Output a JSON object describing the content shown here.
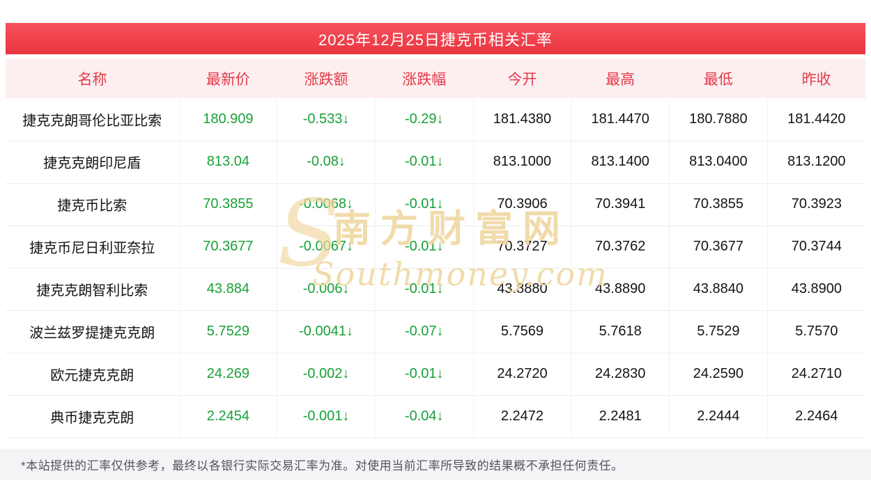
{
  "header": {
    "title": "2025年12月25日捷克币相关汇率"
  },
  "chart_data": {
    "type": "table",
    "title": "2025年12月25日捷克币相关汇率",
    "columns": [
      "名称",
      "最新价",
      "涨跌额",
      "涨跌幅",
      "今开",
      "最高",
      "最低",
      "昨收"
    ],
    "green_columns": [
      1,
      2,
      3
    ],
    "rows": [
      [
        "捷克克朗哥伦比亚比索",
        "180.909",
        "-0.533↓",
        "-0.29↓",
        "181.4380",
        "181.4470",
        "180.7880",
        "181.4420"
      ],
      [
        "捷克克朗印尼盾",
        "813.04",
        "-0.08↓",
        "-0.01↓",
        "813.1000",
        "813.1400",
        "813.0400",
        "813.1200"
      ],
      [
        "捷克币比索",
        "70.3855",
        "-0.0068↓",
        "-0.01↓",
        "70.3906",
        "70.3941",
        "70.3855",
        "70.3923"
      ],
      [
        "捷克币尼日利亚奈拉",
        "70.3677",
        "-0.0067↓",
        "-0.01↓",
        "70.3727",
        "70.3762",
        "70.3677",
        "70.3744"
      ],
      [
        "捷克克朗智利比索",
        "43.884",
        "-0.006↓",
        "-0.01↓",
        "43.8880",
        "43.8890",
        "43.8840",
        "43.8900"
      ],
      [
        "波兰兹罗提捷克克朗",
        "5.7529",
        "-0.0041↓",
        "-0.07↓",
        "5.7569",
        "5.7618",
        "5.7529",
        "5.7570"
      ],
      [
        "欧元捷克克朗",
        "24.269",
        "-0.002↓",
        "-0.01↓",
        "24.2720",
        "24.2830",
        "24.2590",
        "24.2710"
      ],
      [
        "典币捷克克朗",
        "2.2454",
        "-0.001↓",
        "-0.04↓",
        "2.2472",
        "2.2481",
        "2.2444",
        "2.2464"
      ]
    ]
  },
  "watermark": {
    "swoosh": "S",
    "site_name": "南方财富网",
    "domain": "Southmoney.com"
  },
  "footer": {
    "disclaimer": "*本站提供的汇率仅供参考，最终以各银行实际交易汇率为准。对使用当前汇率所导致的结果概不承担任何责任。"
  },
  "colors": {
    "accent_red": "#ea3440",
    "accent_red_light": "#f6525c",
    "header_bg": "#fdeef0",
    "header_text": "#e23a48",
    "down_green": "#18a038",
    "text_dark": "#141414",
    "border": "#ededed",
    "footer_bg": "#f4f4f6",
    "footer_text": "#52525a",
    "watermark_gold": "#f0d8a2"
  }
}
